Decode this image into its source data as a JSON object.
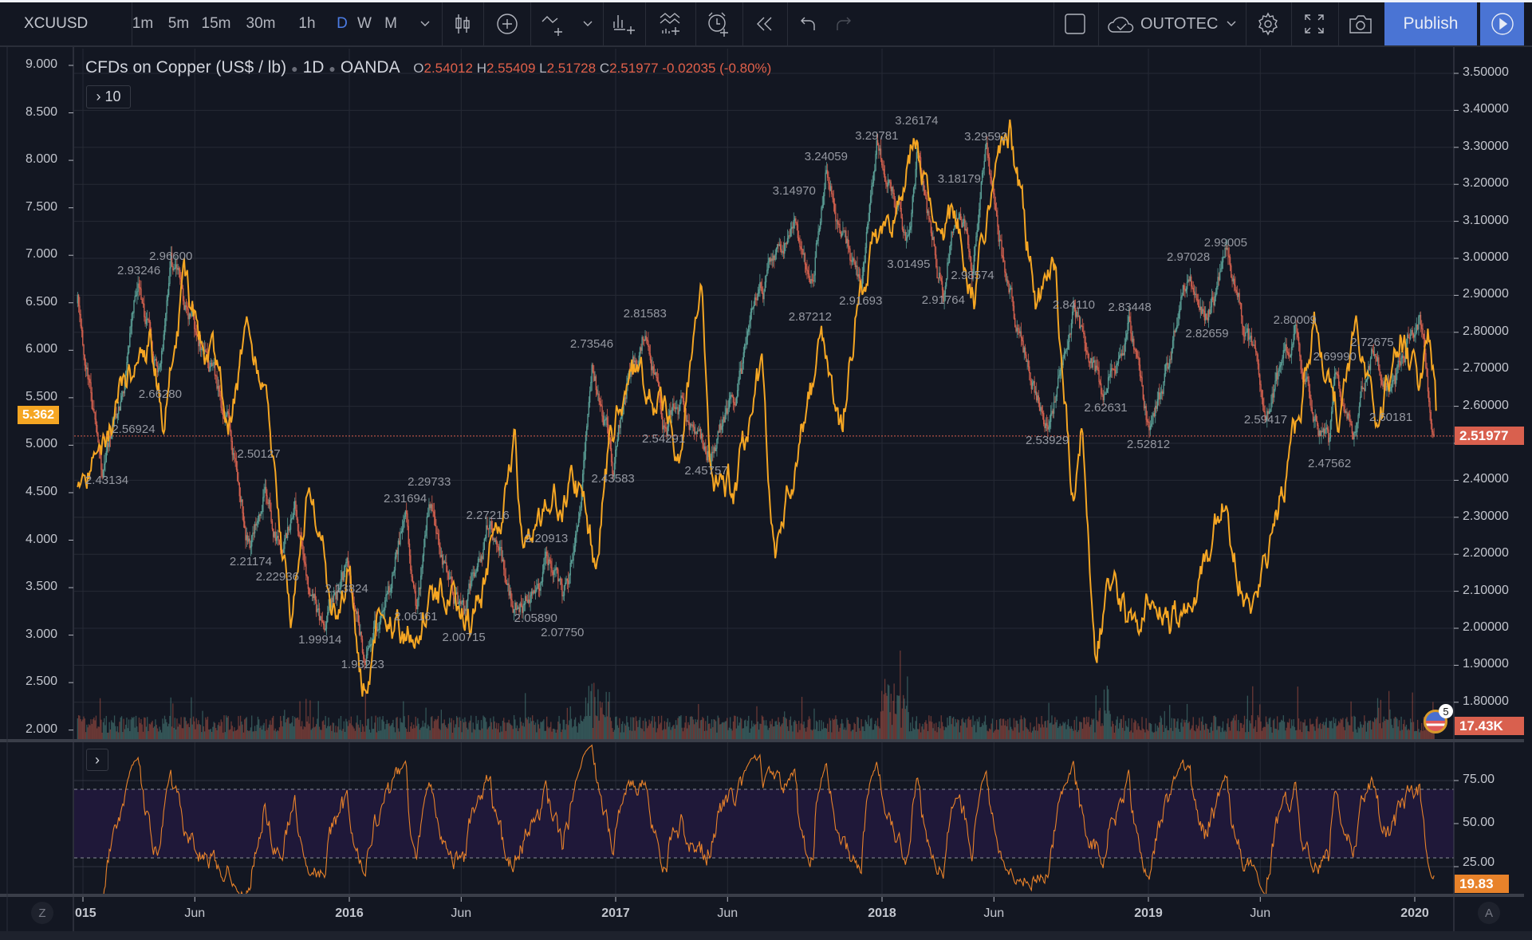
{
  "toolbar": {
    "symbol": "XCUUSD",
    "intervals": [
      "1m",
      "5m",
      "15m",
      "30m",
      "1h",
      "D",
      "W",
      "M"
    ],
    "active_interval": "D",
    "account": "OUTOTEC",
    "publish_label": "Publish",
    "icons": [
      "candles-icon",
      "indicators-plus-icon",
      "compare-icon",
      "financials-icon",
      "indicator-templates-icon",
      "alert-icon",
      "replay-icon",
      "undo-icon",
      "redo-icon",
      "layout-square-icon",
      "cloud-save-icon",
      "gear-icon",
      "fullscreen-icon",
      "camera-icon",
      "play-icon"
    ]
  },
  "legend": {
    "title": "CFDs on Copper (US$ / lb)",
    "interval": "1D",
    "exchange": "OANDA",
    "o_key": "O",
    "o": "2.54012",
    "h_key": "H",
    "h": "2.55409",
    "l_key": "L",
    "l": "2.51728",
    "c_key": "C",
    "c": "2.51977",
    "change": "-0.02035 (-0.80%)",
    "studies_toggle": "› 10",
    "rsi_toggle": "›"
  },
  "tags": {
    "compare_last": "5.362",
    "price_last": "2.51977",
    "volume_last": "17.43K",
    "rsi_last": "19.83",
    "events_badge": "5"
  },
  "bottom": {
    "z_button": "Z",
    "a_button": "A"
  },
  "colors": {
    "up": "#5a9e95",
    "down": "#d2604e",
    "compare": "#f5a623",
    "rsi": "#e8822a",
    "accent": "#4a74d4",
    "price_tag": "#d9604e",
    "compare_tag": "#f5a623"
  },
  "chart_data": {
    "type": "candlestick",
    "title": "CFDs on Copper (US$ / lb) 1D OANDA",
    "x_ticks": [
      {
        "t": 2015.0,
        "label": "015"
      },
      {
        "t": 2015.42,
        "label": "Jun"
      },
      {
        "t": 2016.0,
        "label": "2016"
      },
      {
        "t": 2016.42,
        "label": "Jun"
      },
      {
        "t": 2017.0,
        "label": "2017"
      },
      {
        "t": 2017.42,
        "label": "Jun"
      },
      {
        "t": 2018.0,
        "label": "2018"
      },
      {
        "t": 2018.42,
        "label": "Jun"
      },
      {
        "t": 2019.0,
        "label": "2019"
      },
      {
        "t": 2019.42,
        "label": "Jun"
      },
      {
        "t": 2020.0,
        "label": "2020"
      }
    ],
    "x_range": [
      2014.98,
      2020.08
    ],
    "right_axis": {
      "range": [
        1.75,
        3.55
      ],
      "ticks": [
        "3.50000",
        "3.40000",
        "3.30000",
        "3.20000",
        "3.10000",
        "3.00000",
        "2.90000",
        "2.80000",
        "2.70000",
        "2.60000",
        "2.50000",
        "2.40000",
        "2.30000",
        "2.20000",
        "2.10000",
        "2.00000",
        "1.90000",
        "1.80000"
      ]
    },
    "left_axis": {
      "range": [
        1.9,
        9.1
      ],
      "ticks": [
        "9.000",
        "8.500",
        "8.000",
        "7.500",
        "7.000",
        "6.500",
        "6.000",
        "5.500",
        "5.000",
        "4.500",
        "4.000",
        "3.500",
        "3.000",
        "2.500",
        "2.000"
      ]
    },
    "rsi_axis": {
      "ticks": [
        "75.00",
        "50.00",
        "25.00"
      ],
      "upper_band": 70,
      "lower_band": 30
    },
    "copper_pivots": [
      [
        2014.98,
        2.88
      ],
      [
        2015.07,
        2.43
      ],
      [
        2015.14,
        2.6
      ],
      [
        2015.21,
        2.93
      ],
      [
        2015.29,
        2.66
      ],
      [
        2015.33,
        2.96
      ],
      [
        2015.45,
        2.75
      ],
      [
        2015.55,
        2.55
      ],
      [
        2015.63,
        2.21
      ],
      [
        2015.68,
        2.4
      ],
      [
        2015.73,
        2.23
      ],
      [
        2015.8,
        2.3
      ],
      [
        2015.89,
        2.0
      ],
      [
        2015.99,
        2.14
      ],
      [
        2016.05,
        1.93
      ],
      [
        2016.15,
        2.1
      ],
      [
        2016.21,
        2.32
      ],
      [
        2016.25,
        2.06
      ],
      [
        2016.3,
        2.3
      ],
      [
        2016.43,
        2.01
      ],
      [
        2016.52,
        2.27
      ],
      [
        2016.6,
        2.1
      ],
      [
        2016.7,
        2.06
      ],
      [
        2016.74,
        2.21
      ],
      [
        2016.8,
        2.08
      ],
      [
        2016.86,
        2.25
      ],
      [
        2016.91,
        2.73
      ],
      [
        2016.99,
        2.44
      ],
      [
        2017.05,
        2.7
      ],
      [
        2017.11,
        2.82
      ],
      [
        2017.18,
        2.54
      ],
      [
        2017.25,
        2.6
      ],
      [
        2017.34,
        2.46
      ],
      [
        2017.45,
        2.65
      ],
      [
        2017.55,
        2.9
      ],
      [
        2017.67,
        3.15
      ],
      [
        2017.73,
        2.87
      ],
      [
        2017.79,
        3.24
      ],
      [
        2017.92,
        2.92
      ],
      [
        2017.98,
        3.3
      ],
      [
        2018.1,
        3.02
      ],
      [
        2018.13,
        3.26
      ],
      [
        2018.23,
        2.92
      ],
      [
        2018.29,
        3.18
      ],
      [
        2018.34,
        2.99
      ],
      [
        2018.39,
        3.3
      ],
      [
        2018.45,
        3.0
      ],
      [
        2018.55,
        2.7
      ],
      [
        2018.62,
        2.54
      ],
      [
        2018.72,
        2.84
      ],
      [
        2018.84,
        2.63
      ],
      [
        2018.93,
        2.83
      ],
      [
        2019.0,
        2.53
      ],
      [
        2019.08,
        2.7
      ],
      [
        2019.15,
        2.97
      ],
      [
        2019.22,
        2.83
      ],
      [
        2019.29,
        2.99
      ],
      [
        2019.35,
        2.85
      ],
      [
        2019.44,
        2.59
      ],
      [
        2019.55,
        2.8
      ],
      [
        2019.62,
        2.55
      ],
      [
        2019.68,
        2.48
      ],
      [
        2019.7,
        2.7
      ],
      [
        2019.77,
        2.55
      ],
      [
        2019.84,
        2.73
      ],
      [
        2019.91,
        2.6
      ],
      [
        2020.02,
        2.85
      ],
      [
        2020.07,
        2.52
      ]
    ],
    "compare_series": {
      "name": "OUTOTEC",
      "axis": "left",
      "pivots": [
        [
          2014.98,
          4.5
        ],
        [
          2015.07,
          4.9
        ],
        [
          2015.15,
          5.6
        ],
        [
          2015.25,
          6.1
        ],
        [
          2015.3,
          5.3
        ],
        [
          2015.38,
          6.7
        ],
        [
          2015.45,
          6.0
        ],
        [
          2015.55,
          5.4
        ],
        [
          2015.62,
          6.2
        ],
        [
          2015.68,
          5.8
        ],
        [
          2015.72,
          4.6
        ],
        [
          2015.78,
          3.2
        ],
        [
          2015.85,
          4.8
        ],
        [
          2015.95,
          3.0
        ],
        [
          2016.0,
          3.7
        ],
        [
          2016.05,
          2.5
        ],
        [
          2016.12,
          3.2
        ],
        [
          2016.2,
          3.0
        ],
        [
          2016.35,
          3.5
        ],
        [
          2016.45,
          3.1
        ],
        [
          2016.55,
          4.0
        ],
        [
          2016.62,
          5.0
        ],
        [
          2016.65,
          4.0
        ],
        [
          2016.75,
          4.4
        ],
        [
          2016.85,
          4.6
        ],
        [
          2016.92,
          3.8
        ],
        [
          2016.97,
          4.8
        ],
        [
          2017.05,
          5.8
        ],
        [
          2017.15,
          5.5
        ],
        [
          2017.25,
          5.0
        ],
        [
          2017.32,
          6.9
        ],
        [
          2017.36,
          4.5
        ],
        [
          2017.45,
          4.6
        ],
        [
          2017.55,
          5.8
        ],
        [
          2017.6,
          3.5
        ],
        [
          2017.68,
          5.0
        ],
        [
          2017.78,
          6.0
        ],
        [
          2017.85,
          5.2
        ],
        [
          2017.92,
          6.8
        ],
        [
          2018.0,
          7.2
        ],
        [
          2018.05,
          7.5
        ],
        [
          2018.12,
          8.3
        ],
        [
          2018.2,
          7.0
        ],
        [
          2018.28,
          7.4
        ],
        [
          2018.35,
          6.6
        ],
        [
          2018.42,
          8.0
        ],
        [
          2018.48,
          8.4
        ],
        [
          2018.54,
          7.2
        ],
        [
          2018.58,
          6.5
        ],
        [
          2018.65,
          6.8
        ],
        [
          2018.72,
          4.3
        ],
        [
          2018.75,
          5.3
        ],
        [
          2018.8,
          2.8
        ],
        [
          2018.85,
          3.5
        ],
        [
          2018.95,
          3.0
        ],
        [
          2019.0,
          3.5
        ],
        [
          2019.1,
          3.2
        ],
        [
          2019.2,
          3.5
        ],
        [
          2019.28,
          4.4
        ],
        [
          2019.35,
          3.6
        ],
        [
          2019.38,
          3.1
        ],
        [
          2019.48,
          4.2
        ],
        [
          2019.55,
          5.0
        ],
        [
          2019.62,
          6.3
        ],
        [
          2019.72,
          5.3
        ],
        [
          2019.78,
          6.3
        ],
        [
          2019.85,
          5.0
        ],
        [
          2019.95,
          6.2
        ],
        [
          2020.02,
          5.5
        ],
        [
          2020.05,
          6.3
        ],
        [
          2020.08,
          5.36
        ]
      ]
    },
    "pivot_labels": [
      {
        "text": "2.43134",
        "t": 2015.09,
        "price": 2.43134,
        "kind": "low"
      },
      {
        "text": "2.93246",
        "t": 2015.21,
        "price": 2.93246,
        "kind": "high"
      },
      {
        "text": "2.96600",
        "t": 2015.33,
        "price": 2.966,
        "kind": "high"
      },
      {
        "text": "2.66280",
        "t": 2015.29,
        "price": 2.6628,
        "kind": "low"
      },
      {
        "text": "2.56924",
        "t": 2015.19,
        "price": 2.56924,
        "kind": "low"
      },
      {
        "text": "2.50127",
        "t": 2015.66,
        "price": 2.50127,
        "kind": "low"
      },
      {
        "text": "2.21174",
        "t": 2015.63,
        "price": 2.21174,
        "kind": "low"
      },
      {
        "text": "2.22936",
        "t": 2015.73,
        "price": 2.22936,
        "kind": "low"
      },
      {
        "text": "2.13824",
        "t": 2015.99,
        "price": 2.13824,
        "kind": "low"
      },
      {
        "text": "1.99914",
        "t": 2015.89,
        "price": 1.99914,
        "kind": "low"
      },
      {
        "text": "1.93223",
        "t": 2016.05,
        "price": 1.93223,
        "kind": "low"
      },
      {
        "text": "2.31694",
        "t": 2016.21,
        "price": 2.31694,
        "kind": "high"
      },
      {
        "text": "2.29733",
        "t": 2016.3,
        "price": 2.29733,
        "kind": "high"
      },
      {
        "text": "2.06161",
        "t": 2016.25,
        "price": 2.06161,
        "kind": "low"
      },
      {
        "text": "2.00715",
        "t": 2016.43,
        "price": 2.00715,
        "kind": "low"
      },
      {
        "text": "2.27216",
        "t": 2016.52,
        "price": 2.27216,
        "kind": "high"
      },
      {
        "text": "2.20913",
        "t": 2016.74,
        "price": 2.20913,
        "kind": "high"
      },
      {
        "text": "2.05890",
        "t": 2016.7,
        "price": 2.0589,
        "kind": "low"
      },
      {
        "text": "2.07750",
        "t": 2016.8,
        "price": 2.0775,
        "kind": "low"
      },
      {
        "text": "2.73546",
        "t": 2016.91,
        "price": 2.73546,
        "kind": "high"
      },
      {
        "text": "2.43583",
        "t": 2016.99,
        "price": 2.43583,
        "kind": "low"
      },
      {
        "text": "2.81583",
        "t": 2017.11,
        "price": 2.81583,
        "kind": "high"
      },
      {
        "text": "2.54291",
        "t": 2017.18,
        "price": 2.54291,
        "kind": "low"
      },
      {
        "text": "2.45757",
        "t": 2017.34,
        "price": 2.45757,
        "kind": "low"
      },
      {
        "text": "3.14970",
        "t": 2017.67,
        "price": 3.1497,
        "kind": "high"
      },
      {
        "text": "2.87212",
        "t": 2017.73,
        "price": 2.87212,
        "kind": "low"
      },
      {
        "text": "3.24059",
        "t": 2017.79,
        "price": 3.24059,
        "kind": "high"
      },
      {
        "text": "2.91693",
        "t": 2017.92,
        "price": 2.91693,
        "kind": "low"
      },
      {
        "text": "3.29781",
        "t": 2017.98,
        "price": 3.29781,
        "kind": "high"
      },
      {
        "text": "3.26174",
        "t": 2018.13,
        "price": 3.26174,
        "kind": "high"
      },
      {
        "text": "3.01495",
        "t": 2018.1,
        "price": 3.01495,
        "kind": "low"
      },
      {
        "text": "3.18179",
        "t": 2018.29,
        "price": 3.18179,
        "kind": "high"
      },
      {
        "text": "2.91764",
        "t": 2018.23,
        "price": 2.91764,
        "kind": "low"
      },
      {
        "text": "2.98574",
        "t": 2018.34,
        "price": 2.98574,
        "kind": "low"
      },
      {
        "text": "3.29592",
        "t": 2018.39,
        "price": 3.29592,
        "kind": "high"
      },
      {
        "text": "2.84110",
        "t": 2018.72,
        "price": 2.8411,
        "kind": "high"
      },
      {
        "text": "2.53929",
        "t": 2018.62,
        "price": 2.53929,
        "kind": "low"
      },
      {
        "text": "2.62631",
        "t": 2018.84,
        "price": 2.62631,
        "kind": "low"
      },
      {
        "text": "2.83448",
        "t": 2018.93,
        "price": 2.83448,
        "kind": "high"
      },
      {
        "text": "2.52812",
        "t": 2019.0,
        "price": 2.52812,
        "kind": "low"
      },
      {
        "text": "2.97028",
        "t": 2019.15,
        "price": 2.97028,
        "kind": "high"
      },
      {
        "text": "2.99005",
        "t": 2019.29,
        "price": 2.99005,
        "kind": "high"
      },
      {
        "text": "2.82659",
        "t": 2019.22,
        "price": 2.82659,
        "kind": "low"
      },
      {
        "text": "2.80009",
        "t": 2019.55,
        "price": 2.80009,
        "kind": "high"
      },
      {
        "text": "2.59417",
        "t": 2019.44,
        "price": 2.59417,
        "kind": "low"
      },
      {
        "text": "2.69990",
        "t": 2019.7,
        "price": 2.6999,
        "kind": "high"
      },
      {
        "text": "2.47562",
        "t": 2019.68,
        "price": 2.47562,
        "kind": "low"
      },
      {
        "text": "2.72675",
        "t": 2019.84,
        "price": 2.72675,
        "kind": "high"
      },
      {
        "text": "2.60181",
        "t": 2019.91,
        "price": 2.60181,
        "kind": "low"
      }
    ],
    "last_price": 2.51977,
    "last_compare": 5.362,
    "last_rsi": 19.83
  }
}
